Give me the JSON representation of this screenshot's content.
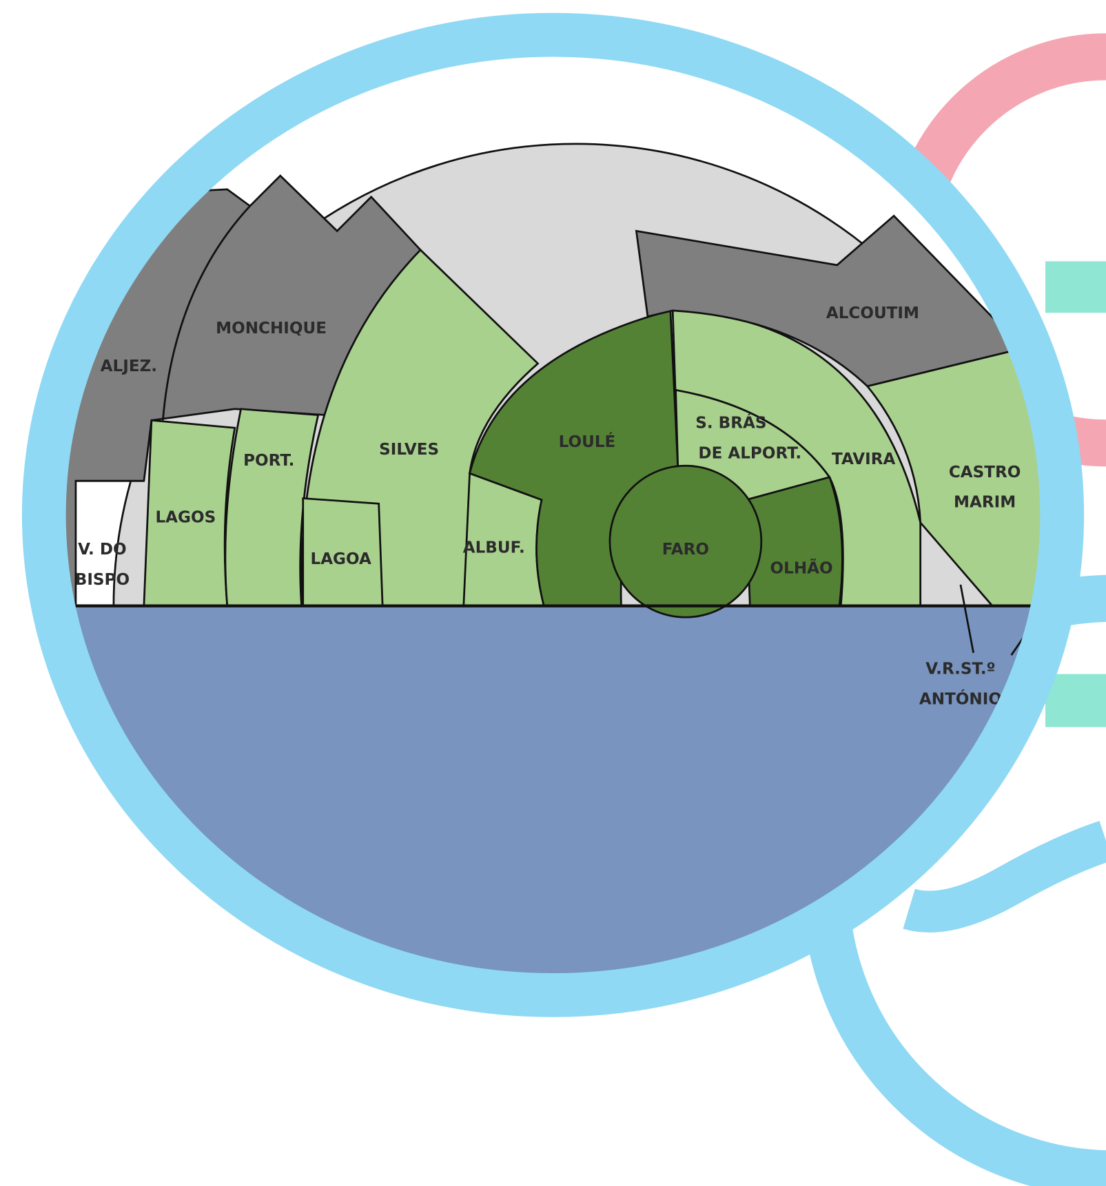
{
  "regions": [
    [
      "MONCHIQUE"
    ],
    [
      "ALJEZ."
    ],
    [
      "V. DO",
      "BISPO"
    ],
    [
      "LAGOS"
    ],
    [
      "PORT."
    ],
    [
      "SILVES"
    ],
    [
      "LAGOA"
    ],
    [
      "ALBUF."
    ],
    [
      "LOULÉ"
    ],
    [
      "FARO"
    ],
    [
      "S. BRÁS",
      "DE ALPORT."
    ],
    [
      "OLHÃO"
    ],
    [
      "TAVIRA"
    ],
    [
      "ALCOUTIM"
    ],
    [
      "CASTRO",
      "MARIM"
    ],
    [
      "V.R.ST.º",
      "ANTÓNIO"
    ]
  ]
}
